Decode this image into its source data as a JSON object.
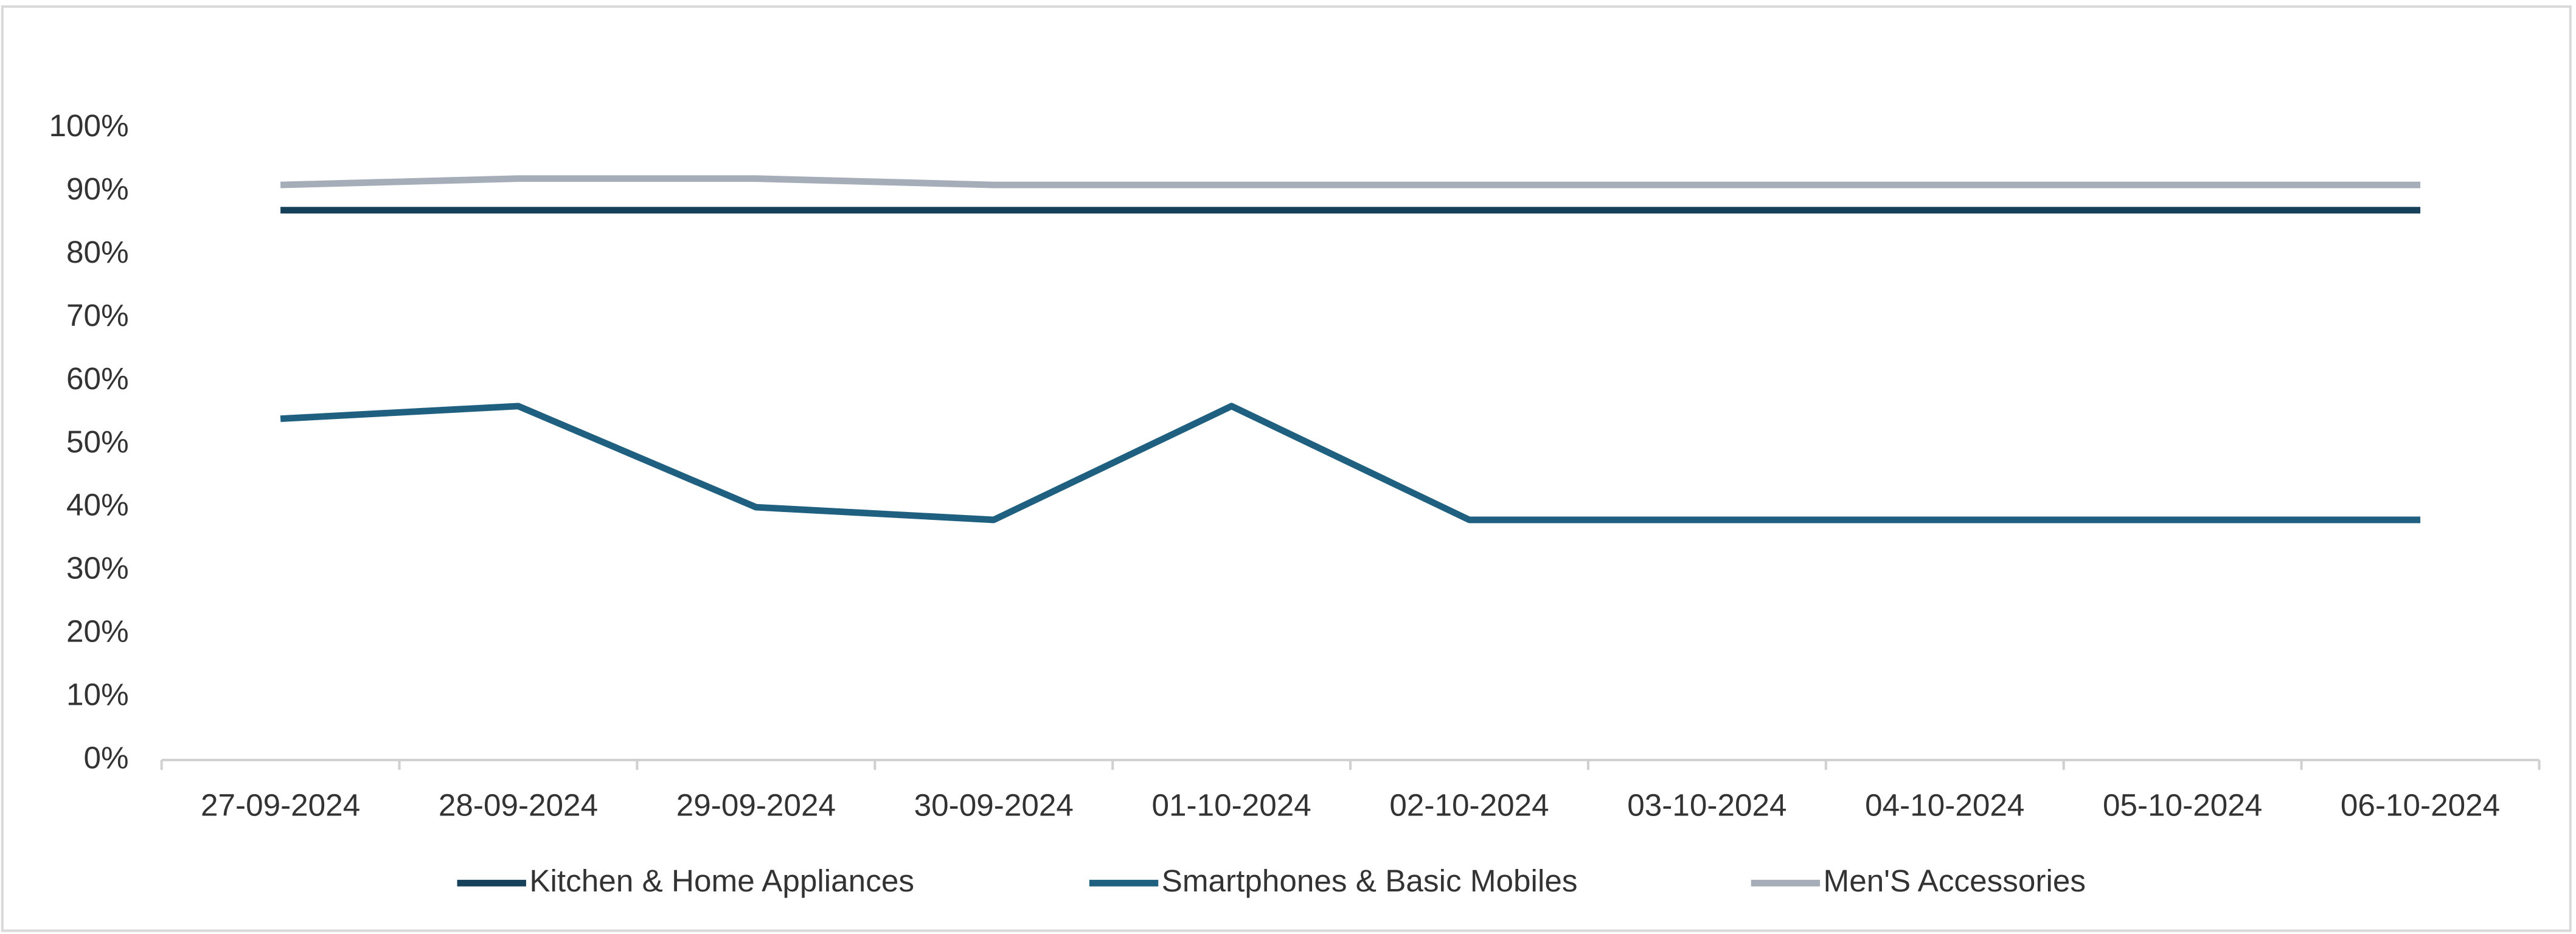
{
  "chart_data": {
    "type": "line",
    "categories": [
      "27-09-2024",
      "28-09-2024",
      "29-09-2024",
      "30-09-2024",
      "01-10-2024",
      "02-10-2024",
      "03-10-2024",
      "04-10-2024",
      "05-10-2024",
      "06-10-2024"
    ],
    "series": [
      {
        "name": "Kitchen & Home Appliances",
        "color": "#17405a",
        "values": [
          87,
          87,
          87,
          87,
          87,
          87,
          87,
          87,
          87,
          87
        ]
      },
      {
        "name": "Smartphones & Basic Mobiles",
        "color": "#1f5f7f",
        "values": [
          54,
          56,
          40,
          38,
          56,
          38,
          38,
          38,
          38,
          38
        ]
      },
      {
        "name": "Men'S Accessories",
        "color": "#a5adb8",
        "values": [
          91,
          92,
          92,
          91,
          91,
          91,
          91,
          91,
          91,
          91
        ]
      }
    ],
    "ylim": [
      0,
      100
    ],
    "yticks": [
      {
        "value": 0,
        "label": "0%"
      },
      {
        "value": 10,
        "label": "10%"
      },
      {
        "value": 20,
        "label": "20%"
      },
      {
        "value": 30,
        "label": "30%"
      },
      {
        "value": 40,
        "label": "40%"
      },
      {
        "value": 50,
        "label": "50%"
      },
      {
        "value": 60,
        "label": "60%"
      },
      {
        "value": 70,
        "label": "70%"
      },
      {
        "value": 80,
        "label": "80%"
      },
      {
        "value": 90,
        "label": "90%"
      },
      {
        "value": 100,
        "label": "100%"
      }
    ],
    "grid": false,
    "legend": "bottom"
  }
}
